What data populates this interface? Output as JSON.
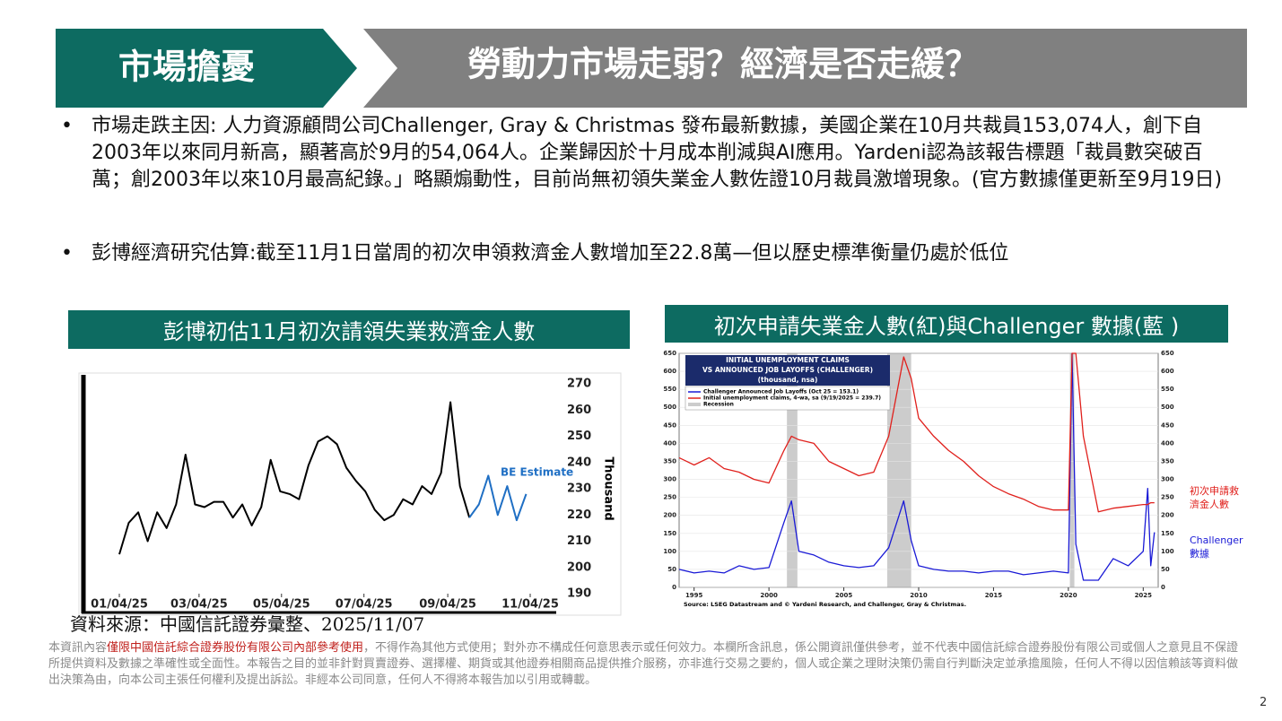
{
  "header": {
    "tag": "市場擔憂",
    "title": "勞動力市場走弱？經濟是否走緩？"
  },
  "bullets": [
    "市場走跌主因: 人力資源顧問公司Challenger, Gray & Christmas 發布最新數據，美國企業在10月共裁員153,074人，創下自2003年以來同月新高，顯著高於9月的54,064人。企業歸因於十月成本削減與AI應用。Yardeni認為該報告標題「裁員數突破百萬；創2003年以來10月最高紀錄。」略顯煽動性，目前尚無初領失業金人數佐證10月裁員激增現象。(官方數據僅更新至9月19日)",
    "彭博經濟研究估算:截至11月1日當周的初次申領救濟金人數增加至22.8萬—但以歷史標準衡量仍處於低位"
  ],
  "left_chart": {
    "type": "line",
    "heading": "彭博初估11月初次請領失業救濟金人數",
    "y_label": "Thousand",
    "annotation": "BE Estimate",
    "x": [
      0,
      7,
      14,
      21,
      28,
      35,
      42,
      49,
      56,
      63,
      70,
      77,
      84,
      91,
      98,
      105,
      112,
      119,
      126,
      133,
      140,
      147,
      154,
      161,
      168,
      175,
      182,
      189,
      196,
      203,
      210,
      217,
      224,
      231,
      238,
      245,
      252,
      259,
      266,
      273,
      280,
      287,
      294,
      301
    ],
    "series": [
      {
        "color": "#000000",
        "values": [
          205,
          217,
          221,
          210,
          221,
          215,
          224,
          243,
          224,
          223,
          225,
          225,
          219,
          224,
          216,
          223,
          241,
          229,
          228,
          226,
          239,
          248,
          250,
          247,
          238,
          233,
          229,
          222,
          218,
          220,
          226,
          224,
          231,
          228,
          236,
          263,
          231,
          219,
          null,
          null,
          null,
          null,
          null,
          null
        ]
      },
      {
        "color": "#1f6fc4",
        "values": [
          null,
          null,
          null,
          null,
          null,
          null,
          null,
          null,
          null,
          null,
          null,
          null,
          null,
          null,
          null,
          null,
          null,
          null,
          null,
          null,
          null,
          null,
          null,
          null,
          null,
          null,
          null,
          null,
          null,
          null,
          null,
          null,
          null,
          null,
          null,
          null,
          null,
          219,
          224,
          235,
          220,
          231,
          218,
          228
        ]
      }
    ],
    "xlim": [
      0,
      304
    ],
    "xticks": [
      {
        "value": 0,
        "label": "01/04/25"
      },
      {
        "value": 59,
        "label": "03/04/25"
      },
      {
        "value": 120,
        "label": "05/04/25"
      },
      {
        "value": 181,
        "label": "07/04/25"
      },
      {
        "value": 243,
        "label": "09/04/25"
      },
      {
        "value": 304,
        "label": "11/04/25"
      }
    ],
    "ylim": [
      190,
      270
    ],
    "yticks": [
      190,
      200,
      210,
      220,
      230,
      240,
      250,
      260,
      270
    ]
  },
  "right_chart": {
    "type": "line",
    "heading": "初次申請失業金人數(紅)與Challenger 數據(藍 )",
    "inner_title": [
      "INITIAL UNEMPLOYMENT CLAIMS",
      "VS ANNOUNCED JOB LAYOFFS (CHALLENGER)",
      "(thousand, nsa)"
    ],
    "source": "Source: LSEG Datastream and © Yardeni Research, and Challenger, Gray & Christmas.",
    "recession_label": "Recession",
    "recessions": [
      [
        2001.2,
        2001.9
      ],
      [
        2007.9,
        2009.5
      ],
      [
        2020.1,
        2020.4
      ]
    ],
    "recession_color": "#cccccc",
    "x": [
      1994,
      1995,
      1996,
      1997,
      1998,
      1999,
      2000,
      2001,
      2001.5,
      2002,
      2003,
      2004,
      2005,
      2006,
      2007,
      2008,
      2009,
      2009.5,
      2010,
      2011,
      2012,
      2013,
      2014,
      2015,
      2016,
      2017,
      2018,
      2019,
      2020,
      2020.25,
      2020.5,
      2021,
      2022,
      2023,
      2024,
      2025,
      2025.3,
      2025.5,
      2025.75
    ],
    "series": [
      {
        "name": "Challenger Announced Job Layoffs (Oct 25 = 153.1)",
        "side_label": [
          "Challenger",
          "數據"
        ],
        "color": "#1a1ad6",
        "values": [
          50,
          40,
          45,
          40,
          60,
          50,
          55,
          180,
          240,
          100,
          90,
          70,
          60,
          55,
          60,
          110,
          240,
          130,
          60,
          50,
          45,
          45,
          40,
          45,
          45,
          35,
          40,
          45,
          40,
          650,
          120,
          20,
          20,
          80,
          60,
          100,
          275,
          60,
          153
        ]
      },
      {
        "name": "Initial unemployment claims, 4-wa, sa (9/19/2025 = 239.7)",
        "side_label": [
          "初次申請救",
          "濟金人數"
        ],
        "color": "#e0201c",
        "values": [
          360,
          340,
          360,
          330,
          320,
          300,
          290,
          380,
          420,
          410,
          400,
          350,
          330,
          310,
          320,
          420,
          640,
          580,
          470,
          420,
          380,
          350,
          310,
          280,
          260,
          245,
          225,
          215,
          215,
          650,
          650,
          420,
          210,
          220,
          225,
          230,
          230,
          235,
          235
        ]
      }
    ],
    "xlim": [
      1994,
      2026
    ],
    "xticks": [
      1995,
      2000,
      2005,
      2010,
      2015,
      2020,
      2025
    ],
    "ylim": [
      0,
      650
    ],
    "yticks": [
      0,
      50,
      100,
      150,
      200,
      250,
      300,
      350,
      400,
      450,
      500,
      550,
      600,
      650
    ],
    "grid": true
  },
  "source_note": "資料來源：中國信託證券彙整、2025/11/07",
  "disclaimer": [
    "本資訊內容",
    "僅限中國信託綜合證券股份有限公司內部參考使用",
    "，不得作為其他方式使用；對外亦不構成任何意思表示或任何效力。本欄所含訊息，係公開資訊僅供參考，並不代表中國信託綜合證券股份有限公司或個人之意見且不保證所提供資料及數據之準確性或全面性。本報告之目的並非針對買賣證券、選擇權、期貨或其他證券相關商品提供推介服務，亦非進行交易之要約，個人或企業之理財決策仍需自行判斷決定並承擔風險，任何人不得以因信賴該等資料做出決策為由，向本公司主張任何權利及提出訴訟。非經本公司同意，任何人不得將本報告加以引用或轉載。"
  ],
  "page_number": "2"
}
